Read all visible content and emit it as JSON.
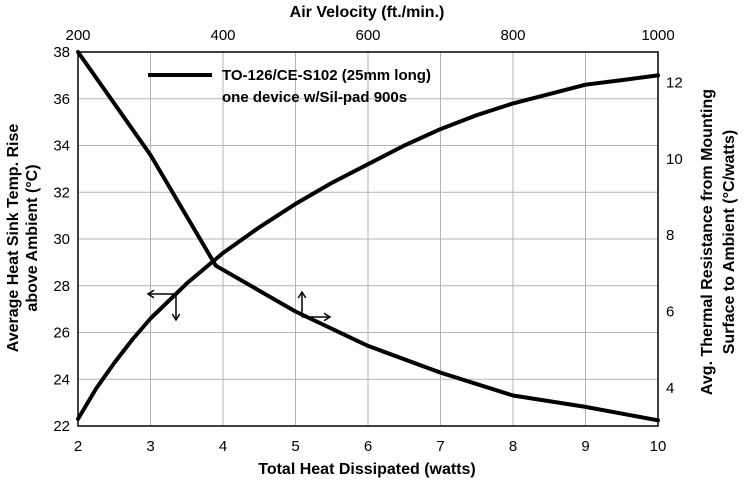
{
  "chart_data": {
    "type": "line",
    "title": "",
    "x_bottom": {
      "label": "Total Heat Dissipated (watts)",
      "min": 2,
      "max": 10,
      "ticks": [
        2,
        3,
        4,
        5,
        6,
        7,
        8,
        9,
        10
      ]
    },
    "x_top": {
      "label": "Air Velocity (ft./min.)",
      "min": 200,
      "max": 1000,
      "ticks": [
        200,
        400,
        600,
        800,
        1000
      ]
    },
    "y_left": {
      "label_line1": "Average Heat Sink Temp. Rise",
      "label_line2": "above Ambient (°C)",
      "min": 22,
      "max": 38,
      "ticks": [
        22,
        24,
        26,
        28,
        30,
        32,
        34,
        36,
        38
      ]
    },
    "y_right": {
      "label_line1": "Avg. Thermal Resistance from Mounting",
      "label_line2": "Surface to Ambient (°C/watts)",
      "min": 3,
      "max": 12.8,
      "ticks": [
        4,
        6,
        8,
        10,
        12
      ]
    },
    "grid": true,
    "legend": {
      "position": "top-left",
      "line1": "TO-126/CE-S102 (25mm long)",
      "line2": "one device w/Sil-pad 900s"
    },
    "series": [
      {
        "axes": "bottom-left",
        "points": [
          [
            2,
            22.3
          ],
          [
            2.25,
            23.6
          ],
          [
            2.5,
            24.7
          ],
          [
            2.75,
            25.7
          ],
          [
            3,
            26.6
          ],
          [
            3.5,
            28.1
          ],
          [
            4,
            29.4
          ],
          [
            4.5,
            30.5
          ],
          [
            5,
            31.5
          ],
          [
            5.5,
            32.4
          ],
          [
            6,
            33.2
          ],
          [
            6.5,
            34.0
          ],
          [
            7,
            34.7
          ],
          [
            7.5,
            35.3
          ],
          [
            8,
            35.8
          ],
          [
            8.5,
            36.2
          ],
          [
            9,
            36.6
          ],
          [
            9.5,
            36.8
          ],
          [
            10,
            37.0
          ]
        ]
      },
      {
        "axes": "top-right",
        "points": [
          [
            200,
            12.8
          ],
          [
            300,
            10.1
          ],
          [
            390,
            7.2
          ],
          [
            500,
            6.0
          ],
          [
            600,
            5.1
          ],
          [
            700,
            4.4
          ],
          [
            800,
            3.8
          ],
          [
            900,
            3.5
          ],
          [
            1000,
            3.15
          ]
        ]
      }
    ]
  }
}
